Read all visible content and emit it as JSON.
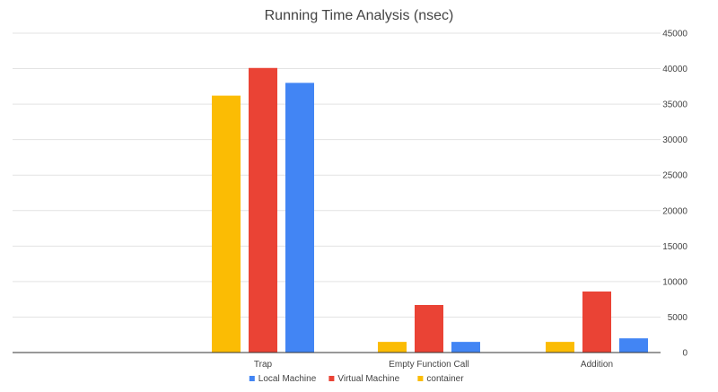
{
  "chart_data": {
    "type": "bar",
    "title": "Running Time Analysis (nsec)",
    "xlabel": "",
    "ylabel": "",
    "categories": [
      "Trap",
      "Empty Function Call",
      "Addition"
    ],
    "series": [
      {
        "name": "container",
        "color": "#fbbc04",
        "values": [
          36200,
          1500,
          1500
        ]
      },
      {
        "name": "Virtual Machine",
        "color": "#ea4335",
        "values": [
          40100,
          6700,
          8600
        ]
      },
      {
        "name": "Local Machine",
        "color": "#4285f4",
        "values": [
          38000,
          1500,
          2000
        ]
      }
    ],
    "legend_order": [
      "Local Machine",
      "Virtual Machine",
      "container"
    ],
    "ylim": [
      0,
      45000
    ],
    "yticks": [
      0,
      5000,
      10000,
      15000,
      20000,
      25000,
      30000,
      35000,
      40000,
      45000
    ],
    "y_axis_side": "right",
    "grid": true,
    "legend_position": "bottom"
  }
}
